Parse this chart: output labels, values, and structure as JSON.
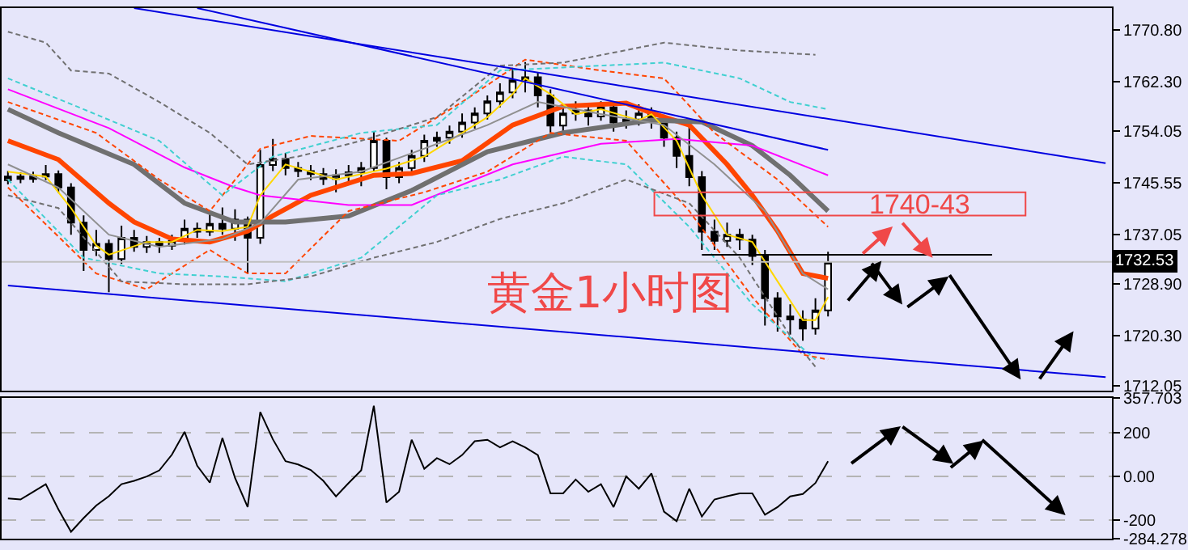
{
  "chart_data": [
    {
      "type": "candlestick",
      "title": "黄金1小时图",
      "tick_labels": "y",
      "grid": false,
      "categories": [
        null,
        null,
        null,
        null,
        null,
        null,
        null,
        null,
        null,
        null,
        null,
        null,
        null,
        null,
        null,
        null,
        null,
        null,
        null,
        null,
        null,
        null,
        null,
        null,
        null,
        null,
        null,
        null,
        null,
        null,
        null,
        null,
        null,
        null,
        null,
        null,
        null,
        null,
        null,
        null,
        null,
        null,
        null,
        null,
        null,
        null,
        null,
        null,
        null,
        null,
        null,
        null,
        null,
        null,
        null,
        null,
        null,
        null,
        null,
        null,
        null,
        null,
        null,
        null,
        null,
        null,
        null,
        null,
        null,
        null,
        null,
        null,
        null,
        null,
        null,
        null,
        null,
        null,
        null,
        null,
        null,
        null,
        null,
        null,
        null,
        null,
        null,
        null
      ],
      "ylim": [
        1711.3,
        1774.4
      ],
      "yticks": [
        {
          "value": 1770.8,
          "label": "1770.80"
        },
        {
          "value": 1762.3,
          "label": "1762.30"
        },
        {
          "value": 1754.05,
          "label": "1754.05"
        },
        {
          "value": 1745.55,
          "label": "1745.55"
        },
        {
          "value": 1737.05,
          "label": "1737.05"
        },
        {
          "value": 1728.9,
          "label": "1728.90"
        },
        {
          "value": 1720.3,
          "label": "1720.30"
        },
        {
          "value": 1712.05,
          "label": "1712.05"
        }
      ],
      "ohlc": [
        [
          1746.0,
          1747.5,
          1745.3,
          1746.6
        ],
        [
          1746.6,
          1747.3,
          1745.5,
          1746.2
        ],
        [
          1746.2,
          1747.4,
          1745.6,
          1746.6
        ],
        [
          1746.6,
          1748.5,
          1746.0,
          1747.0
        ],
        [
          1747.0,
          1747.6,
          1743.9,
          1744.8
        ],
        [
          1744.8,
          1745.5,
          1737.0,
          1739.0
        ],
        [
          1739.0,
          1740.2,
          1731.0,
          1734.5
        ],
        [
          1734.5,
          1737.8,
          1733.5,
          1735.5
        ],
        [
          1735.5,
          1736.2,
          1727.5,
          1733.0
        ],
        [
          1733.0,
          1738.5,
          1732.2,
          1736.5
        ],
        [
          1736.5,
          1737.8,
          1734.2,
          1735.0
        ],
        [
          1735.0,
          1736.8,
          1734.0,
          1735.8
        ],
        [
          1735.8,
          1736.5,
          1734.0,
          1735.2
        ],
        [
          1735.2,
          1737.0,
          1734.5,
          1736.0
        ],
        [
          1736.0,
          1739.5,
          1735.4,
          1738.0
        ],
        [
          1738.0,
          1739.0,
          1736.5,
          1737.5
        ],
        [
          1737.5,
          1740.5,
          1736.8,
          1738.8
        ],
        [
          1738.8,
          1741.5,
          1737.0,
          1738.0
        ],
        [
          1738.0,
          1741.2,
          1736.0,
          1739.5
        ],
        [
          1739.5,
          1740.0,
          1730.6,
          1736.5
        ],
        [
          1736.5,
          1751.0,
          1735.5,
          1748.5
        ],
        [
          1748.5,
          1752.8,
          1747.5,
          1749.5
        ],
        [
          1749.5,
          1750.5,
          1746.8,
          1748.0
        ],
        [
          1748.0,
          1749.0,
          1746.5,
          1747.5
        ],
        [
          1747.5,
          1748.5,
          1746.0,
          1747.0
        ],
        [
          1747.0,
          1748.0,
          1745.2,
          1746.2
        ],
        [
          1746.2,
          1747.8,
          1744.0,
          1746.8
        ],
        [
          1746.8,
          1748.5,
          1745.5,
          1747.3
        ],
        [
          1747.3,
          1749.0,
          1745.0,
          1748.0
        ],
        [
          1748.0,
          1754.0,
          1747.5,
          1752.5
        ],
        [
          1752.5,
          1753.0,
          1744.5,
          1746.5
        ],
        [
          1746.5,
          1749.0,
          1745.5,
          1748.0
        ],
        [
          1748.0,
          1751.0,
          1747.0,
          1750.0
        ],
        [
          1750.0,
          1753.5,
          1749.0,
          1752.5
        ],
        [
          1752.5,
          1754.0,
          1751.5,
          1753.0
        ],
        [
          1753.0,
          1755.0,
          1752.0,
          1754.0
        ],
        [
          1754.0,
          1757.0,
          1753.0,
          1755.5
        ],
        [
          1755.5,
          1758.0,
          1754.5,
          1757.0
        ],
        [
          1757.0,
          1760.0,
          1756.0,
          1759.0
        ],
        [
          1759.0,
          1762.0,
          1758.0,
          1760.5
        ],
        [
          1760.5,
          1764.5,
          1759.5,
          1762.5
        ],
        [
          1762.5,
          1765.5,
          1760.5,
          1763.0
        ],
        [
          1763.0,
          1763.8,
          1758.0,
          1760.0
        ],
        [
          1760.0,
          1761.0,
          1753.8,
          1755.0
        ],
        [
          1755.0,
          1758.0,
          1754.0,
          1757.0
        ],
        [
          1757.0,
          1759.0,
          1755.8,
          1757.5
        ],
        [
          1757.5,
          1758.5,
          1755.0,
          1756.5
        ],
        [
          1756.5,
          1759.0,
          1755.8,
          1758.0
        ],
        [
          1758.0,
          1758.8,
          1754.0,
          1755.5
        ],
        [
          1755.5,
          1757.5,
          1754.5,
          1756.0
        ],
        [
          1756.0,
          1758.5,
          1755.0,
          1757.0
        ],
        [
          1757.0,
          1758.0,
          1754.5,
          1756.0
        ],
        [
          1756.0,
          1756.8,
          1751.5,
          1753.0
        ],
        [
          1753.0,
          1754.0,
          1748.0,
          1750.0
        ],
        [
          1750.0,
          1756.0,
          1745.0,
          1746.5
        ],
        [
          1746.5,
          1747.5,
          1734.5,
          1737.5
        ],
        [
          1737.5,
          1739.5,
          1734.5,
          1736.0
        ],
        [
          1736.0,
          1739.0,
          1735.0,
          1737.0
        ],
        [
          1737.0,
          1738.0,
          1734.5,
          1736.2
        ],
        [
          1736.2,
          1737.0,
          1732.0,
          1733.5
        ],
        [
          1733.5,
          1734.5,
          1722.0,
          1726.5
        ],
        [
          1726.5,
          1727.5,
          1721.0,
          1723.5
        ],
        [
          1723.5,
          1725.5,
          1720.5,
          1723.0
        ],
        [
          1723.0,
          1724.5,
          1719.5,
          1721.5
        ],
        [
          1721.5,
          1726.5,
          1720.5,
          1724.5
        ],
        [
          1724.5,
          1734.2,
          1723.5,
          1732.5
        ],
        null,
        null,
        null,
        null,
        null,
        null,
        null,
        null,
        null,
        null,
        null,
        null,
        null,
        null,
        null,
        null,
        null,
        null,
        null,
        null,
        null,
        null
      ],
      "series": [
        {
          "type": "line",
          "color": "#ff4500",
          "line_style": "solid",
          "values": [
            1752.5,
            null,
            null,
            null,
            1749.4,
            null,
            null,
            null,
            1742.2,
            null,
            1739.1,
            null,
            null,
            1736.3,
            null,
            null,
            1735.8,
            null,
            null,
            1737.6,
            null,
            1740.1,
            null,
            null,
            1743.5,
            null,
            null,
            null,
            null,
            1746.8,
            null,
            null,
            1747.1,
            null,
            null,
            null,
            1749.2,
            null,
            null,
            null,
            1755.1,
            null,
            null,
            null,
            1758.2,
            null,
            null,
            null,
            null,
            1758.7,
            null,
            1757.1,
            null,
            null,
            1755.1,
            null,
            null,
            1748.6,
            null,
            1743.5,
            null,
            1737.6,
            null,
            1730.6,
            null,
            1729.8,
            null,
            null,
            null,
            null,
            null,
            null,
            null,
            null,
            null,
            null,
            null,
            null,
            null,
            null,
            null,
            null,
            null,
            null,
            null,
            null,
            null,
            null
          ]
        },
        {
          "type": "line",
          "color": "#707070",
          "line_style": "solid",
          "values": [
            1757.7,
            null,
            null,
            null,
            1753.8,
            null,
            null,
            null,
            null,
            null,
            1748.6,
            null,
            null,
            null,
            1742.2,
            null,
            null,
            null,
            1739.1,
            null,
            null,
            null,
            1739.1,
            null,
            null,
            null,
            null,
            1740.1,
            null,
            null,
            null,
            null,
            1744.3,
            null,
            null,
            null,
            null,
            null,
            1750.7,
            null,
            null,
            null,
            null,
            null,
            1753.8,
            null,
            null,
            null,
            null,
            null,
            null,
            1755.9,
            null,
            null,
            null,
            1755.6,
            null,
            null,
            null,
            1751.7,
            null,
            null,
            1746.8,
            null,
            null,
            1740.9,
            null,
            null,
            null,
            null,
            null,
            null,
            null,
            null,
            null,
            null,
            null,
            null,
            null,
            null,
            null,
            null,
            null,
            null,
            null,
            null,
            null,
            null
          ]
        },
        {
          "type": "line",
          "color": "#ff00ff",
          "line_style": "solid",
          "values": [
            1761.0,
            null,
            null,
            null,
            null,
            null,
            null,
            null,
            1754.6,
            null,
            null,
            null,
            null,
            null,
            1748.1,
            null,
            null,
            null,
            1744.8,
            null,
            1743.5,
            null,
            null,
            null,
            null,
            null,
            null,
            1741.9,
            null,
            null,
            null,
            null,
            1741.9,
            null,
            null,
            null,
            null,
            null,
            null,
            null,
            1748.6,
            null,
            null,
            null,
            null,
            null,
            null,
            1752.0,
            null,
            null,
            null,
            null,
            null,
            1752.8,
            null,
            null,
            null,
            null,
            null,
            1751.7,
            null,
            null,
            null,
            null,
            null,
            1746.8,
            null,
            null,
            null,
            null,
            null,
            null,
            null,
            null,
            null,
            null,
            null,
            null,
            null,
            null,
            null,
            null,
            null,
            null,
            null,
            null,
            null,
            null
          ]
        },
        {
          "type": "line",
          "color": "#ffd700",
          "line_style": "solid",
          "values": [
            1747.4,
            null,
            null,
            1746.6,
            null,
            1741.4,
            null,
            1735.2,
            1733.7,
            null,
            null,
            1735.8,
            null,
            1735.8,
            null,
            1737.8,
            null,
            1737.6,
            null,
            1738.3,
            1743.5,
            null,
            1748.6,
            null,
            1747.4,
            null,
            1746.1,
            null,
            null,
            null,
            1747.9,
            null,
            null,
            1749.9,
            null,
            1752.5,
            null,
            null,
            1756.4,
            null,
            1760.2,
            1762.8,
            null,
            1760.2,
            null,
            1756.9,
            null,
            1757.7,
            null,
            null,
            1755.9,
            1756.9,
            null,
            1752.5,
            null,
            1743.5,
            null,
            1737.0,
            null,
            1735.8,
            null,
            1729.3,
            null,
            1722.9,
            1722.9,
            1726.7,
            null,
            null,
            null,
            null,
            null,
            null,
            null,
            null,
            null,
            null,
            null,
            null,
            null,
            null,
            null,
            null,
            null,
            null,
            null,
            null,
            null,
            null
          ]
        },
        {
          "type": "line",
          "color": "#909090",
          "line_style": "solid",
          "values": [
            1748.6,
            null,
            null,
            null,
            1744.8,
            null,
            null,
            null,
            1737.0,
            null,
            null,
            null,
            1735.0,
            null,
            null,
            null,
            null,
            1736.3,
            null,
            null,
            1738.9,
            null,
            null,
            1746.1,
            null,
            null,
            null,
            null,
            1747.4,
            null,
            null,
            null,
            null,
            1751.2,
            null,
            null,
            null,
            null,
            1755.1,
            null,
            null,
            null,
            1758.9,
            null,
            null,
            null,
            null,
            1756.9,
            null,
            null,
            null,
            null,
            1755.1,
            null,
            null,
            null,
            1748.6,
            null,
            null,
            null,
            1740.9,
            null,
            null,
            1730.6,
            null,
            1728.0,
            null,
            null,
            null,
            null,
            null,
            null,
            null,
            null,
            null,
            null,
            null,
            null,
            null,
            null,
            null,
            null,
            null,
            null,
            null,
            null,
            null,
            null
          ]
        },
        {
          "type": "line",
          "color": "#ff4500",
          "line_style": "dashed",
          "values": [
            1758.9,
            null,
            null,
            null,
            null,
            null,
            null,
            1753.8,
            null,
            null,
            null,
            null,
            1746.1,
            null,
            null,
            null,
            1740.9,
            null,
            null,
            null,
            1751.2,
            null,
            null,
            null,
            1753.3,
            null,
            null,
            null,
            null,
            null,
            null,
            1752.5,
            null,
            null,
            null,
            null,
            1758.9,
            null,
            null,
            null,
            null,
            1765.9,
            null,
            null,
            null,
            null,
            null,
            1764.1,
            null,
            null,
            null,
            null,
            1762.8,
            null,
            null,
            null,
            1753.8,
            null,
            null,
            null,
            null,
            1746.1,
            null,
            null,
            null,
            1738.3,
            null,
            null,
            null,
            null,
            null,
            null,
            null,
            null,
            null,
            null,
            null,
            null,
            null,
            null,
            null,
            null,
            null,
            null,
            null,
            null,
            null,
            null
          ]
        },
        {
          "type": "line",
          "color": "#ff4500",
          "line_style": "dashed",
          "values": [
            1744.8,
            null,
            null,
            null,
            null,
            null,
            null,
            1730.6,
            null,
            null,
            null,
            1728.0,
            null,
            null,
            null,
            null,
            1734.5,
            null,
            null,
            1730.6,
            null,
            null,
            1730.6,
            null,
            null,
            null,
            null,
            1740.9,
            null,
            null,
            null,
            null,
            null,
            1744.0,
            null,
            null,
            null,
            null,
            1747.4,
            null,
            null,
            null,
            null,
            1753.8,
            null,
            null,
            null,
            null,
            null,
            1752.5,
            null,
            null,
            null,
            null,
            1740.9,
            null,
            null,
            null,
            null,
            1726.7,
            null,
            null,
            null,
            1717.2,
            null,
            1716.4,
            null,
            null,
            null,
            null,
            null,
            null,
            null,
            null,
            null,
            null,
            null,
            null,
            null,
            null,
            null,
            null,
            null,
            null,
            null,
            null,
            null,
            null
          ]
        },
        {
          "type": "line",
          "color": "#40d0d0",
          "line_style": "dashed",
          "values": [
            1762.8,
            null,
            null,
            null,
            null,
            null,
            1757.7,
            null,
            null,
            null,
            null,
            null,
            1752.5,
            null,
            null,
            null,
            null,
            1743.5,
            null,
            null,
            null,
            1749.9,
            null,
            null,
            null,
            null,
            null,
            null,
            1753.8,
            null,
            null,
            null,
            null,
            null,
            1755.1,
            null,
            null,
            null,
            null,
            1764.1,
            null,
            null,
            null,
            null,
            1764.6,
            null,
            null,
            null,
            null,
            null,
            null,
            null,
            1765.4,
            null,
            null,
            null,
            null,
            null,
            1762.8,
            null,
            null,
            null,
            1758.9,
            null,
            null,
            1757.7,
            null,
            null,
            null,
            null,
            null,
            null,
            null,
            null,
            null,
            null,
            null,
            null,
            null,
            null,
            null,
            null,
            null,
            null,
            null,
            null,
            null,
            null
          ]
        },
        {
          "type": "line",
          "color": "#40d0d0",
          "line_style": "dashed",
          "values": [
            1746.1,
            null,
            null,
            null,
            null,
            null,
            1733.2,
            null,
            null,
            null,
            null,
            null,
            1730.6,
            null,
            null,
            null,
            null,
            1730.1,
            null,
            null,
            null,
            null,
            1729.3,
            null,
            null,
            null,
            null,
            null,
            1733.2,
            null,
            null,
            null,
            null,
            null,
            1743.5,
            null,
            null,
            null,
            null,
            1746.1,
            null,
            null,
            null,
            null,
            1749.9,
            null,
            null,
            null,
            null,
            1748.6,
            null,
            null,
            null,
            null,
            1738.3,
            null,
            null,
            null,
            null,
            1725.5,
            null,
            null,
            null,
            null,
            1716.4,
            null,
            null,
            null,
            null,
            null,
            null,
            null,
            null,
            null,
            null,
            null,
            null,
            null,
            null,
            null,
            null,
            null,
            null,
            null,
            null,
            null,
            null,
            null
          ]
        },
        {
          "type": "line",
          "color": "#707070",
          "line_style": "dashed",
          "values": [
            1770.5,
            null,
            null,
            1768.7,
            null,
            1764.1,
            null,
            null,
            1763.6,
            null,
            null,
            null,
            1758.9,
            null,
            null,
            null,
            1753.8,
            null,
            null,
            1748.6,
            null,
            null,
            null,
            1749.9,
            null,
            null,
            null,
            null,
            1752.5,
            null,
            null,
            null,
            null,
            null,
            1756.4,
            null,
            null,
            null,
            null,
            1764.9,
            null,
            null,
            null,
            null,
            1765.4,
            null,
            null,
            null,
            null,
            null,
            null,
            null,
            1768.7,
            null,
            null,
            null,
            null,
            null,
            1767.4,
            null,
            null,
            null,
            null,
            null,
            1766.7,
            null,
            null,
            null,
            null,
            null,
            null,
            null,
            null,
            null,
            null,
            null,
            null,
            null,
            null,
            null,
            null,
            null,
            null,
            null,
            null,
            null,
            null,
            null
          ]
        },
        {
          "type": "line",
          "color": "#707070",
          "line_style": "dashed",
          "values": [
            1743.5,
            null,
            null,
            null,
            1741.4,
            null,
            null,
            null,
            null,
            1729.3,
            null,
            null,
            null,
            null,
            1728.8,
            null,
            null,
            null,
            null,
            1728.8,
            null,
            null,
            null,
            null,
            1730.1,
            null,
            null,
            null,
            null,
            1733.2,
            null,
            null,
            null,
            null,
            1735.8,
            null,
            null,
            null,
            null,
            1739.6,
            null,
            null,
            null,
            null,
            1742.2,
            null,
            null,
            null,
            null,
            1746.1,
            null,
            null,
            null,
            null,
            1742.2,
            null,
            null,
            null,
            1733.2,
            null,
            null,
            null,
            1720.3,
            null,
            1715.2,
            null,
            null,
            null,
            null,
            null,
            null,
            null,
            null,
            null,
            null,
            null,
            null,
            null,
            null,
            null,
            null,
            null,
            null,
            null,
            null,
            null,
            null,
            null
          ]
        },
        {
          "type": "line",
          "color": "#0000e0",
          "line_style": "solid",
          "values": [
            null,
            null,
            null,
            null,
            null,
            null,
            null,
            null,
            null,
            null,
            1774.4,
            null,
            null,
            null,
            null,
            null,
            null,
            null,
            null,
            null,
            null,
            null,
            null,
            null,
            null,
            null,
            null,
            null,
            null,
            null,
            null,
            null,
            null,
            null,
            null,
            null,
            null,
            null,
            null,
            null,
            null,
            null,
            null,
            null,
            null,
            null,
            null,
            null,
            null,
            null,
            null,
            null,
            null,
            null,
            null,
            null,
            null,
            null,
            null,
            null,
            null,
            null,
            null,
            null,
            null,
            null,
            null,
            null,
            null,
            null,
            null,
            null,
            null,
            null,
            null,
            null,
            null,
            null,
            null,
            null,
            null,
            null,
            null,
            null,
            null,
            null,
            null,
            1748.8
          ]
        },
        {
          "type": "line",
          "color": "#0000e0",
          "line_style": "solid",
          "values": [
            null,
            null,
            null,
            null,
            null,
            null,
            null,
            null,
            null,
            null,
            null,
            null,
            null,
            null,
            null,
            1774.4,
            null,
            null,
            null,
            null,
            null,
            null,
            null,
            null,
            null,
            null,
            null,
            null,
            null,
            null,
            null,
            null,
            null,
            null,
            null,
            null,
            null,
            null,
            null,
            null,
            null,
            null,
            null,
            null,
            null,
            null,
            null,
            null,
            null,
            null,
            null,
            null,
            null,
            null,
            null,
            null,
            null,
            null,
            null,
            null,
            null,
            null,
            null,
            null,
            null,
            1751.0,
            null,
            null,
            null,
            null,
            null,
            null,
            null,
            null,
            null,
            null,
            null,
            null,
            null,
            null,
            null,
            null,
            null,
            null,
            null,
            null,
            null,
            null
          ]
        },
        {
          "type": "line",
          "color": "#0000e0",
          "line_style": "solid",
          "values": [
            1728.6,
            null,
            null,
            null,
            null,
            null,
            null,
            null,
            null,
            null,
            null,
            null,
            null,
            null,
            null,
            null,
            null,
            null,
            null,
            null,
            null,
            null,
            null,
            null,
            null,
            null,
            null,
            null,
            null,
            null,
            null,
            null,
            null,
            null,
            null,
            null,
            null,
            null,
            null,
            null,
            null,
            null,
            null,
            null,
            null,
            null,
            null,
            null,
            null,
            null,
            null,
            null,
            null,
            null,
            null,
            null,
            null,
            null,
            null,
            null,
            null,
            null,
            null,
            null,
            null,
            null,
            null,
            null,
            null,
            null,
            null,
            null,
            null,
            null,
            null,
            null,
            null,
            null,
            null,
            null,
            null,
            null,
            null,
            null,
            null,
            null,
            null,
            1713.5
          ]
        },
        {
          "type": "line",
          "color": "#000000",
          "line_style": "solid",
          "values": [
            null,
            null,
            null,
            null,
            null,
            null,
            null,
            null,
            null,
            null,
            null,
            null,
            null,
            null,
            null,
            null,
            null,
            null,
            null,
            null,
            null,
            null,
            null,
            null,
            null,
            null,
            null,
            null,
            null,
            null,
            null,
            null,
            null,
            null,
            null,
            null,
            null,
            null,
            null,
            null,
            null,
            null,
            null,
            null,
            null,
            null,
            null,
            null,
            null,
            null,
            null,
            null,
            null,
            null,
            null,
            1733.7,
            null,
            null,
            null,
            null,
            null,
            null,
            null,
            null,
            null,
            null,
            null,
            null,
            null,
            null,
            null,
            null,
            null,
            null,
            null,
            null,
            null,
            null,
            1733.7,
            null,
            null,
            null,
            null,
            null,
            null,
            null,
            null,
            null
          ]
        }
      ],
      "ref_lines": [
        {
          "axis": "y",
          "value": 1732.53,
          "label": "1732.53",
          "color": "#c0c0c0"
        }
      ],
      "annotations": [
        "1740-43"
      ]
    },
    {
      "type": "line",
      "tick_labels": "y",
      "grid": "y",
      "categories": [
        null,
        null,
        null,
        null,
        null,
        null,
        null,
        null,
        null,
        null,
        null,
        null,
        null,
        null,
        null,
        null,
        null,
        null,
        null,
        null,
        null,
        null,
        null,
        null,
        null,
        null,
        null,
        null,
        null,
        null,
        null,
        null,
        null,
        null,
        null,
        null,
        null,
        null,
        null,
        null,
        null,
        null,
        null,
        null,
        null,
        null,
        null,
        null,
        null,
        null,
        null,
        null,
        null,
        null,
        null,
        null,
        null,
        null,
        null,
        null,
        null,
        null,
        null,
        null,
        null,
        null,
        null,
        null,
        null,
        null,
        null,
        null,
        null,
        null,
        null,
        null,
        null,
        null,
        null,
        null,
        null,
        null,
        null,
        null,
        null,
        null,
        null,
        null
      ],
      "ylim": [
        -284.278,
        357.703
      ],
      "yticks": [
        357.703,
        200,
        {
          "value": 0,
          "label": "0.00"
        },
        -200,
        -284.278
      ],
      "series": [
        {
          "type": "line",
          "color": "#000000",
          "line_style": "solid",
          "values": [
            -100,
            -105,
            -70,
            -35,
            -150,
            -253,
            -190,
            -133,
            -90,
            -35,
            -20,
            0,
            28,
            100,
            204,
            49,
            -28,
            176,
            -7,
            -140,
            295,
            170,
            70,
            55,
            30,
            -20,
            -91,
            -30,
            28,
            323,
            -119,
            -70,
            168,
            35,
            84,
            56,
            98,
            161,
            168,
            133,
            161,
            133,
            98,
            -77,
            -77,
            -14,
            -70,
            -35,
            -140,
            0,
            -56,
            14,
            -161,
            -204,
            -56,
            -183,
            -105,
            -90,
            -77,
            -77,
            -175,
            -140,
            -91,
            -80,
            -30,
            70,
            null,
            null,
            null,
            null,
            null,
            null,
            null,
            null,
            null,
            null,
            null,
            null,
            null,
            null,
            null,
            null,
            null,
            null,
            null,
            null,
            null,
            null
          ]
        }
      ]
    }
  ]
}
